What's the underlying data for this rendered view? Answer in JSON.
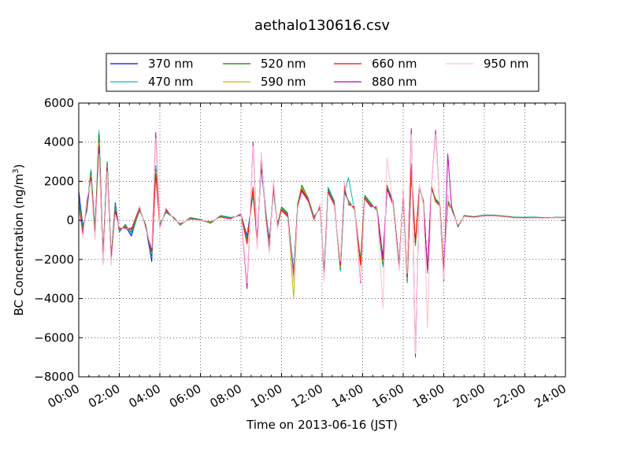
{
  "chart_data": {
    "type": "line",
    "title": "aethalo130616.csv",
    "xlabel": "Time on 2013-06-16 (JST)",
    "ylabel_main": "BC Concentration (ng/m",
    "ylabel_sup": "3",
    "ylabel_close": ")",
    "xlim": [
      0,
      24
    ],
    "ylim": [
      -8000,
      6000
    ],
    "x_ticks": [
      0,
      2,
      4,
      6,
      8,
      10,
      12,
      14,
      16,
      18,
      20,
      22,
      24
    ],
    "x_tick_labels": [
      "00:00",
      "02:00",
      "04:00",
      "06:00",
      "08:00",
      "10:00",
      "12:00",
      "14:00",
      "16:00",
      "18:00",
      "20:00",
      "22:00",
      "24:00"
    ],
    "y_ticks": [
      -8000,
      -6000,
      -4000,
      -2000,
      0,
      2000,
      4000,
      6000
    ],
    "y_tick_labels": [
      "−8000",
      "−6000",
      "−4000",
      "−2000",
      "0",
      "2000",
      "4000",
      "6000"
    ],
    "grid": true,
    "legend_position": "top-outside",
    "legend_columns": 4,
    "x": [
      0.0,
      0.2,
      0.4,
      0.6,
      0.8,
      1.0,
      1.2,
      1.4,
      1.6,
      1.8,
      2.0,
      2.3,
      2.6,
      3.0,
      3.3,
      3.6,
      3.8,
      4.0,
      4.3,
      4.7,
      5.0,
      5.5,
      6.0,
      6.5,
      7.0,
      7.5,
      8.0,
      8.3,
      8.6,
      8.8,
      9.0,
      9.2,
      9.4,
      9.6,
      9.8,
      10.0,
      10.3,
      10.6,
      10.8,
      11.0,
      11.3,
      11.6,
      11.9,
      12.1,
      12.3,
      12.6,
      12.9,
      13.1,
      13.3,
      13.6,
      13.9,
      14.1,
      14.4,
      14.7,
      15.0,
      15.2,
      15.5,
      15.8,
      16.0,
      16.2,
      16.4,
      16.6,
      16.8,
      17.0,
      17.2,
      17.4,
      17.6,
      17.8,
      18.0,
      18.2,
      18.4,
      18.7,
      19.0,
      19.5,
      20.0,
      20.5,
      21.0,
      21.5,
      22.0,
      22.5,
      23.0,
      23.5,
      24.0
    ],
    "series": [
      {
        "name": "370 nm",
        "color": "#0000ff",
        "values": [
          1500,
          -300,
          500,
          2400,
          -400,
          3500,
          -1800,
          3000,
          -2000,
          900,
          -500,
          -300,
          -800,
          600,
          -300,
          -2100,
          2800,
          -300,
          500,
          100,
          -200,
          100,
          0,
          -100,
          200,
          100,
          300,
          -800,
          1400,
          -900,
          2800,
          500,
          -1000,
          1600,
          -300,
          600,
          300,
          -2600,
          800,
          1500,
          1100,
          100,
          700,
          -2800,
          1600,
          900,
          -2400,
          1500,
          900,
          600,
          -2200,
          1200,
          800,
          600,
          -2300,
          1700,
          900,
          -2200,
          1500,
          -3000,
          2400,
          -1200,
          1700,
          900,
          -2600,
          1700,
          1000,
          800,
          -2500,
          900,
          600,
          -300,
          200,
          150,
          250,
          250,
          200,
          150,
          150,
          150,
          120,
          150,
          150
        ]
      },
      {
        "name": "470 nm",
        "color": "#00bfbf",
        "values": [
          1200,
          -400,
          600,
          2600,
          -500,
          4600,
          -1900,
          3000,
          -1800,
          800,
          -600,
          -200,
          -700,
          500,
          -200,
          -1900,
          2800,
          -200,
          400,
          150,
          -250,
          150,
          50,
          -150,
          250,
          150,
          250,
          -900,
          1300,
          -1000,
          3000,
          700,
          -1200,
          1500,
          -200,
          700,
          400,
          -2700,
          900,
          1400,
          1200,
          200,
          600,
          -2600,
          1700,
          1000,
          -2600,
          1400,
          2200,
          500,
          -2000,
          1300,
          900,
          500,
          -2400,
          1800,
          1000,
          -2300,
          1400,
          -3200,
          2500,
          -1300,
          1600,
          1000,
          -2700,
          1600,
          1100,
          900,
          -2400,
          1000,
          700,
          -350,
          250,
          200,
          280,
          270,
          220,
          170,
          160,
          170,
          130,
          160,
          150
        ]
      },
      {
        "name": "520 nm",
        "color": "#008000",
        "values": [
          1000,
          -500,
          700,
          2500,
          -600,
          4400,
          -2000,
          2900,
          -1900,
          700,
          -550,
          -250,
          -600,
          550,
          -250,
          -1800,
          2600,
          -250,
          450,
          120,
          -220,
          120,
          30,
          -120,
          220,
          120,
          280,
          -1000,
          1500,
          -1100,
          3100,
          600,
          -1300,
          1700,
          -250,
          650,
          350,
          -2900,
          850,
          1800,
          1150,
          150,
          650,
          -2700,
          1550,
          950,
          -2500,
          1600,
          1000,
          550,
          -2100,
          1250,
          850,
          550,
          -2250,
          1750,
          950,
          -2250,
          1450,
          -3100,
          2600,
          -1250,
          1650,
          950,
          -2650,
          1650,
          1050,
          850,
          -2450,
          950,
          650,
          -320,
          230,
          180,
          260,
          260,
          210,
          160,
          150,
          160,
          125,
          155,
          145
        ]
      },
      {
        "name": "590 nm",
        "color": "#bfbf00",
        "values": [
          900,
          -600,
          800,
          2300,
          -700,
          4000,
          -2100,
          2800,
          -2000,
          600,
          -500,
          -300,
          -500,
          600,
          -300,
          -1700,
          2500,
          -300,
          500,
          100,
          -200,
          100,
          20,
          -100,
          200,
          100,
          300,
          -1100,
          1600,
          -1200,
          3200,
          500,
          -1400,
          1800,
          -300,
          600,
          300,
          -4000,
          800,
          1700,
          1100,
          100,
          700,
          -2800,
          1500,
          900,
          -2400,
          1700,
          900,
          600,
          -2200,
          1200,
          800,
          600,
          -2100,
          1700,
          900,
          -2300,
          1500,
          -3000,
          2700,
          -1200,
          1700,
          900,
          -2600,
          1700,
          1000,
          800,
          -2500,
          900,
          600,
          -300,
          220,
          170,
          250,
          250,
          200,
          150,
          140,
          150,
          120,
          150,
          140
        ]
      },
      {
        "name": "660 nm",
        "color": "#ff0000",
        "values": [
          800,
          -700,
          900,
          2200,
          -800,
          3800,
          -2200,
          2700,
          -2100,
          500,
          -450,
          -350,
          -450,
          650,
          -350,
          -1600,
          2400,
          -350,
          550,
          80,
          -180,
          80,
          10,
          -80,
          180,
          80,
          320,
          -1200,
          1700,
          -1300,
          3300,
          400,
          -1500,
          1900,
          -350,
          550,
          250,
          -3000,
          750,
          1600,
          1050,
          50,
          750,
          -2900,
          1450,
          850,
          -2300,
          1800,
          850,
          650,
          -2300,
          1150,
          750,
          650,
          -2000,
          1650,
          850,
          -2400,
          1550,
          -2900,
          2900,
          -1150,
          1750,
          850,
          -2550,
          1750,
          950,
          750,
          -2550,
          850,
          550,
          -280,
          210,
          160,
          240,
          240,
          190,
          140,
          130,
          140,
          115,
          145,
          135
        ]
      },
      {
        "name": "880 nm",
        "color": "#bf00bf",
        "values": [
          700,
          -800,
          1000,
          2100,
          -900,
          3600,
          -2200,
          2600,
          -2200,
          400,
          -400,
          -400,
          -400,
          700,
          -400,
          -1500,
          4500,
          -400,
          600,
          60,
          -160,
          60,
          0,
          -60,
          160,
          60,
          350,
          -3500,
          4000,
          -1400,
          3400,
          300,
          -1600,
          2000,
          -400,
          500,
          200,
          -3100,
          700,
          1500,
          1000,
          0,
          800,
          -3000,
          1400,
          800,
          -2200,
          1900,
          800,
          700,
          -3200,
          1100,
          700,
          700,
          -1900,
          1600,
          800,
          -2500,
          1600,
          -2800,
          4700,
          -7000,
          1800,
          800,
          -2500,
          1800,
          4600,
          700,
          -3100,
          3400,
          500,
          -250,
          200,
          150,
          230,
          230,
          180,
          130,
          120,
          130,
          110,
          140,
          130
        ]
      },
      {
        "name": "950 nm",
        "color": "#ffc0cb",
        "values": [
          600,
          -900,
          1100,
          2000,
          -1000,
          3400,
          -2300,
          2500,
          -2300,
          300,
          -350,
          -450,
          -350,
          750,
          -450,
          -1400,
          4200,
          -450,
          650,
          40,
          -140,
          40,
          -10,
          -40,
          140,
          40,
          380,
          -3200,
          3800,
          -1500,
          3500,
          200,
          -1700,
          2100,
          -450,
          450,
          150,
          -3200,
          650,
          1400,
          950,
          -50,
          850,
          -3100,
          1350,
          750,
          -2100,
          2000,
          750,
          750,
          -3100,
          1050,
          650,
          750,
          -4500,
          3200,
          750,
          -2600,
          1650,
          -2700,
          4400,
          -6800,
          1850,
          750,
          -5500,
          1850,
          4400,
          650,
          -3000,
          1300,
          450,
          -230,
          190,
          140,
          220,
          220,
          170,
          120,
          110,
          120,
          105,
          135,
          125
        ]
      }
    ]
  }
}
